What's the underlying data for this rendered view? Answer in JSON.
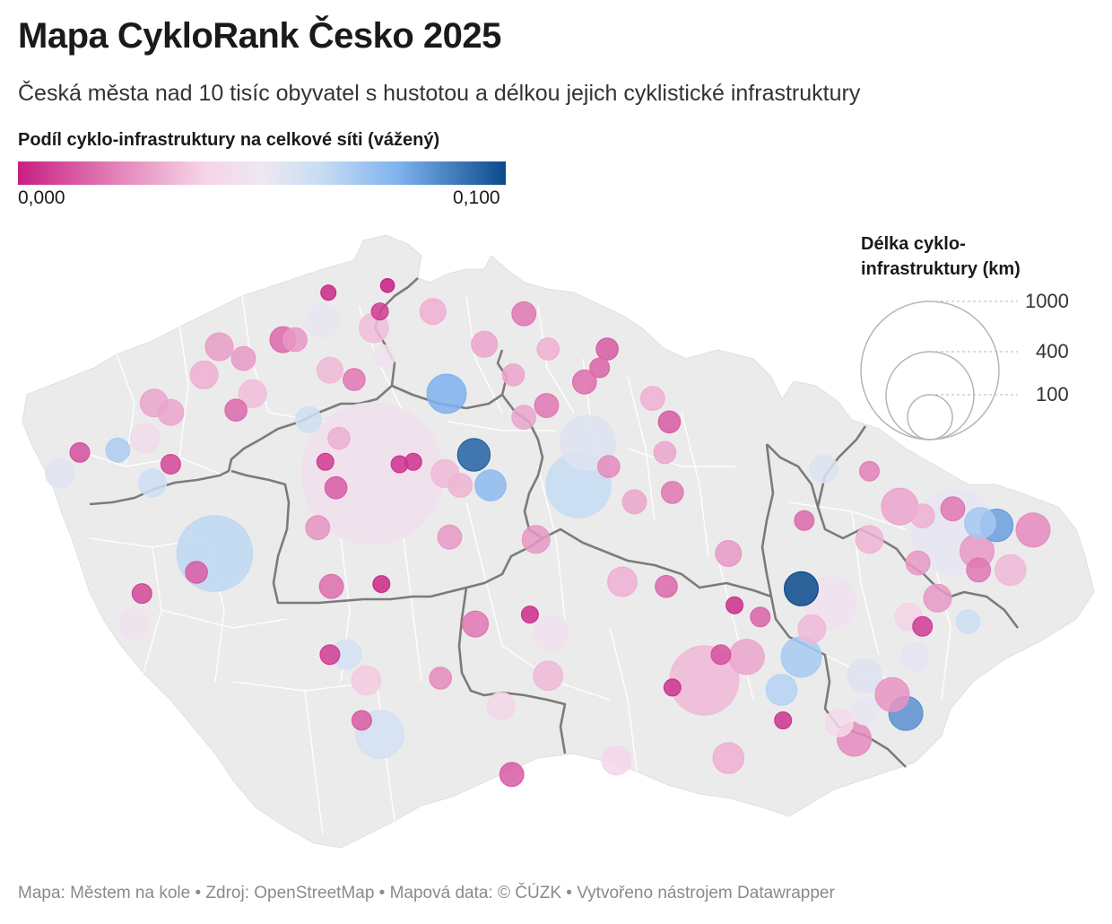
{
  "title": "Mapa CykloRank Česko 2025",
  "subtitle": "Česká města nad 10 tisíc obyvatel s hustotou a délkou jejich cyklistické infrastruktury",
  "color_legend": {
    "title": "Podíl cyklo-infrastruktury na celkové síti (vážený)",
    "min_label": "0,000",
    "max_label": "0,100",
    "min": 0.0,
    "max": 0.1
  },
  "size_legend": {
    "title": "Délka cyklo-infrastruktury (km)",
    "values": [
      1000,
      400,
      100
    ],
    "labels": [
      "1000",
      "400",
      "100"
    ]
  },
  "footer": "Mapa: Městem na kole • Zdroj: OpenStreetMap • Mapová data: © ČÚZK  • Vytvořeno nástrojem Datawrapper",
  "colors": {
    "map_fill": "#ebebeb",
    "district_border": "#ffffff",
    "region_border": "#7b7b7b",
    "low": "#c81f83",
    "mid": "#eee8f2",
    "high": "#0a4a8c"
  },
  "chart_data": {
    "type": "bubble-map",
    "size_field": "Délka cyklo-infrastruktury (km)",
    "color_field": "Podíl cyklo-infrastruktury na celkové síti (vážený)",
    "cities": [
      {
        "lon": 14.42,
        "lat": 50.08,
        "km": 1050,
        "share": 0.045
      },
      {
        "lon": 16.61,
        "lat": 49.2,
        "km": 250,
        "share": 0.032
      },
      {
        "lon": 18.26,
        "lat": 49.83,
        "km": 380,
        "share": 0.052
      },
      {
        "lon": 13.38,
        "lat": 49.74,
        "km": 300,
        "share": 0.064
      },
      {
        "lon": 15.78,
        "lat": 50.03,
        "km": 220,
        "share": 0.062
      },
      {
        "lon": 15.84,
        "lat": 50.21,
        "km": 160,
        "share": 0.055
      },
      {
        "lon": 15.09,
        "lat": 50.16,
        "km": 55,
        "share": 0.095
      },
      {
        "lon": 15.2,
        "lat": 50.03,
        "km": 50,
        "share": 0.075
      },
      {
        "lon": 14.91,
        "lat": 50.42,
        "km": 80,
        "share": 0.078
      },
      {
        "lon": 17.25,
        "lat": 49.59,
        "km": 60,
        "share": 0.1
      },
      {
        "lon": 17.25,
        "lat": 49.3,
        "km": 85,
        "share": 0.069
      },
      {
        "lon": 18.54,
        "lat": 49.86,
        "km": 55,
        "share": 0.082
      },
      {
        "lon": 18.43,
        "lat": 49.87,
        "km": 50,
        "share": 0.07
      },
      {
        "lon": 17.94,
        "lat": 49.06,
        "km": 60,
        "share": 0.085
      },
      {
        "lon": 17.44,
        "lat": 49.53,
        "km": 140,
        "share": 0.046
      },
      {
        "lon": 17.67,
        "lat": 49.22,
        "km": 60,
        "share": 0.055
      },
      {
        "lon": 17.12,
        "lat": 49.16,
        "km": 50,
        "share": 0.066
      },
      {
        "lon": 18.0,
        "lat": 49.3,
        "km": 40,
        "share": 0.053
      },
      {
        "lon": 17.67,
        "lat": 49.07,
        "km": 40,
        "share": 0.052
      },
      {
        "lon": 14.47,
        "lat": 48.97,
        "km": 120,
        "share": 0.058
      },
      {
        "lon": 14.25,
        "lat": 49.31,
        "km": 45,
        "share": 0.058
      },
      {
        "lon": 15.6,
        "lat": 49.4,
        "km": 65,
        "share": 0.046
      },
      {
        "lon": 12.85,
        "lat": 49.44,
        "km": 50,
        "share": 0.047
      },
      {
        "lon": 12.97,
        "lat": 50.04,
        "km": 40,
        "share": 0.06
      },
      {
        "lon": 14.09,
        "lat": 50.73,
        "km": 60,
        "share": 0.052
      },
      {
        "lon": 12.36,
        "lat": 50.08,
        "km": 45,
        "share": 0.054
      },
      {
        "lon": 12.74,
        "lat": 50.18,
        "km": 30,
        "share": 0.068
      },
      {
        "lon": 12.92,
        "lat": 50.23,
        "km": 45,
        "share": 0.042
      },
      {
        "lon": 14.0,
        "lat": 50.31,
        "km": 35,
        "share": 0.06
      },
      {
        "lon": 14.5,
        "lat": 50.58,
        "km": 25,
        "share": 0.047
      },
      {
        "lon": 18.35,
        "lat": 49.45,
        "km": 30,
        "share": 0.06
      },
      {
        "lon": 17.4,
        "lat": 50.1,
        "km": 40,
        "share": 0.055
      },
      {
        "lon": 17.96,
        "lat": 49.47,
        "km": 40,
        "share": 0.038
      },
      {
        "lon": 16.03,
        "lat": 48.86,
        "km": 45,
        "share": 0.04
      },
      {
        "lon": 15.27,
        "lat": 49.09,
        "km": 40,
        "share": 0.04
      },
      {
        "lon": 17.5,
        "lat": 49.02,
        "km": 40,
        "share": 0.042
      },
      {
        "lon": 16.77,
        "lat": 48.87,
        "km": 50,
        "share": 0.03
      },
      {
        "lon": 15.16,
        "lat": 50.63,
        "km": 35,
        "share": 0.028
      },
      {
        "lon": 14.43,
        "lat": 50.7,
        "km": 45,
        "share": 0.033
      },
      {
        "lon": 13.63,
        "lat": 50.42,
        "km": 40,
        "share": 0.033
      },
      {
        "lon": 18.63,
        "lat": 49.67,
        "km": 50,
        "share": 0.032
      },
      {
        "lon": 16.89,
        "lat": 49.3,
        "km": 65,
        "share": 0.028
      },
      {
        "lon": 17.7,
        "lat": 49.8,
        "km": 40,
        "share": 0.031
      },
      {
        "lon": 17.9,
        "lat": 49.94,
        "km": 70,
        "share": 0.028
      },
      {
        "lon": 18.41,
        "lat": 49.75,
        "km": 60,
        "share": 0.025
      },
      {
        "lon": 18.78,
        "lat": 49.84,
        "km": 60,
        "share": 0.022
      },
      {
        "lon": 17.85,
        "lat": 49.14,
        "km": 60,
        "share": 0.024
      },
      {
        "lon": 17.6,
        "lat": 48.95,
        "km": 60,
        "share": 0.022
      },
      {
        "lon": 17.32,
        "lat": 49.42,
        "km": 40,
        "share": 0.032
      },
      {
        "lon": 16.07,
        "lat": 49.62,
        "km": 45,
        "share": 0.03
      },
      {
        "lon": 15.58,
        "lat": 49.22,
        "km": 45,
        "share": 0.032
      },
      {
        "lon": 14.38,
        "lat": 49.2,
        "km": 45,
        "share": 0.036
      },
      {
        "lon": 15.5,
        "lat": 49.8,
        "km": 40,
        "share": 0.025
      },
      {
        "lon": 16.77,
        "lat": 49.74,
        "km": 35,
        "share": 0.025
      },
      {
        "lon": 18.15,
        "lat": 49.55,
        "km": 40,
        "share": 0.025
      },
      {
        "lon": 18.05,
        "lat": 49.9,
        "km": 30,
        "share": 0.03
      },
      {
        "lon": 14.9,
        "lat": 50.08,
        "km": 40,
        "share": 0.032
      },
      {
        "lon": 14.14,
        "lat": 50.52,
        "km": 35,
        "share": 0.032
      },
      {
        "lon": 13.31,
        "lat": 50.5,
        "km": 40,
        "share": 0.03
      },
      {
        "lon": 13.41,
        "lat": 50.62,
        "km": 40,
        "share": 0.026
      },
      {
        "lon": 14.82,
        "lat": 50.77,
        "km": 35,
        "share": 0.03
      },
      {
        "lon": 15.42,
        "lat": 50.32,
        "km": 30,
        "share": 0.028
      },
      {
        "lon": 12.98,
        "lat": 50.38,
        "km": 40,
        "share": 0.028
      },
      {
        "lon": 13.09,
        "lat": 50.34,
        "km": 35,
        "share": 0.028
      },
      {
        "lon": 16.15,
        "lat": 49.96,
        "km": 30,
        "share": 0.028
      },
      {
        "lon": 16.27,
        "lat": 50.4,
        "km": 30,
        "share": 0.03
      },
      {
        "lon": 15.58,
        "lat": 50.61,
        "km": 25,
        "share": 0.03
      },
      {
        "lon": 15.0,
        "lat": 50.03,
        "km": 30,
        "share": 0.031
      },
      {
        "lon": 14.06,
        "lat": 49.85,
        "km": 30,
        "share": 0.024
      },
      {
        "lon": 18.02,
        "lat": 49.7,
        "km": 30,
        "share": 0.025
      },
      {
        "lon": 13.91,
        "lat": 50.65,
        "km": 30,
        "share": 0.025
      },
      {
        "lon": 13.57,
        "lat": 50.57,
        "km": 30,
        "share": 0.025
      },
      {
        "lon": 14.2,
        "lat": 50.23,
        "km": 25,
        "share": 0.03
      },
      {
        "lon": 16.35,
        "lat": 50.17,
        "km": 25,
        "share": 0.028
      },
      {
        "lon": 15.35,
        "lat": 50.5,
        "km": 25,
        "share": 0.028
      },
      {
        "lon": 14.93,
        "lat": 49.81,
        "km": 30,
        "share": 0.025
      },
      {
        "lon": 14.87,
        "lat": 49.21,
        "km": 25,
        "share": 0.022
      },
      {
        "lon": 15.98,
        "lat": 50.11,
        "km": 25,
        "share": 0.022
      },
      {
        "lon": 15.57,
        "lat": 50.37,
        "km": 30,
        "share": 0.018
      },
      {
        "lon": 15.1,
        "lat": 49.44,
        "km": 35,
        "share": 0.018
      },
      {
        "lon": 13.83,
        "lat": 50.65,
        "km": 35,
        "share": 0.015
      },
      {
        "lon": 14.3,
        "lat": 50.48,
        "km": 25,
        "share": 0.018
      },
      {
        "lon": 13.52,
        "lat": 50.35,
        "km": 25,
        "share": 0.015
      },
      {
        "lon": 14.15,
        "lat": 49.6,
        "km": 30,
        "share": 0.016
      },
      {
        "lon": 15.82,
        "lat": 50.47,
        "km": 30,
        "share": 0.016
      },
      {
        "lon": 16.4,
        "lat": 50.0,
        "km": 25,
        "share": 0.018
      },
      {
        "lon": 16.36,
        "lat": 49.6,
        "km": 25,
        "share": 0.015
      },
      {
        "lon": 16.72,
        "lat": 49.31,
        "km": 20,
        "share": 0.01
      },
      {
        "lon": 18.25,
        "lat": 49.93,
        "km": 30,
        "share": 0.018
      },
      {
        "lon": 18.42,
        "lat": 49.67,
        "km": 30,
        "share": 0.018
      },
      {
        "lon": 15.42,
        "lat": 50.76,
        "km": 30,
        "share": 0.018
      },
      {
        "lon": 17.7,
        "lat": 50.09,
        "km": 20,
        "share": 0.02
      },
      {
        "lon": 17.27,
        "lat": 49.88,
        "km": 20,
        "share": 0.015
      },
      {
        "lon": 13.26,
        "lat": 49.66,
        "km": 25,
        "share": 0.012
      },
      {
        "lon": 15.34,
        "lat": 48.8,
        "km": 30,
        "share": 0.012
      },
      {
        "lon": 16.98,
        "lat": 49.47,
        "km": 20,
        "share": 0.014
      },
      {
        "lon": 14.35,
        "lat": 49.03,
        "km": 20,
        "share": 0.012
      },
      {
        "lon": 14.18,
        "lat": 50.02,
        "km": 25,
        "share": 0.012
      },
      {
        "lon": 15.97,
        "lat": 50.61,
        "km": 25,
        "share": 0.012
      },
      {
        "lon": 15.92,
        "lat": 50.53,
        "km": 20,
        "share": 0.014
      },
      {
        "lon": 16.38,
        "lat": 50.3,
        "km": 25,
        "share": 0.012
      },
      {
        "lon": 13.09,
        "lat": 50.12,
        "km": 20,
        "share": 0.008
      },
      {
        "lon": 12.9,
        "lat": 49.57,
        "km": 20,
        "share": 0.008
      },
      {
        "lon": 12.49,
        "lat": 50.17,
        "km": 20,
        "share": 0.01
      },
      {
        "lon": 14.14,
        "lat": 49.31,
        "km": 20,
        "share": 0.006
      },
      {
        "lon": 18.05,
        "lat": 49.43,
        "km": 20,
        "share": 0.006
      },
      {
        "lon": 14.11,
        "lat": 50.13,
        "km": 15,
        "share": 0.005
      },
      {
        "lon": 14.47,
        "lat": 50.77,
        "km": 15,
        "share": 0.006
      },
      {
        "lon": 14.52,
        "lat": 50.88,
        "km": 10,
        "share": 0.0
      },
      {
        "lon": 14.6,
        "lat": 50.12,
        "km": 15,
        "share": 0.004
      },
      {
        "lon": 14.69,
        "lat": 50.13,
        "km": 15,
        "share": 0.004
      },
      {
        "lon": 14.48,
        "lat": 49.61,
        "km": 15,
        "share": 0.002
      },
      {
        "lon": 15.46,
        "lat": 49.48,
        "km": 15,
        "share": 0.003
      },
      {
        "lon": 16.4,
        "lat": 49.17,
        "km": 15,
        "share": 0.004
      },
      {
        "lon": 17.13,
        "lat": 49.03,
        "km": 15,
        "share": 0.004
      },
      {
        "lon": 16.81,
        "lat": 49.52,
        "km": 15,
        "share": 0.003
      },
      {
        "lon": 14.13,
        "lat": 50.85,
        "km": 12,
        "share": 0.002
      }
    ]
  }
}
